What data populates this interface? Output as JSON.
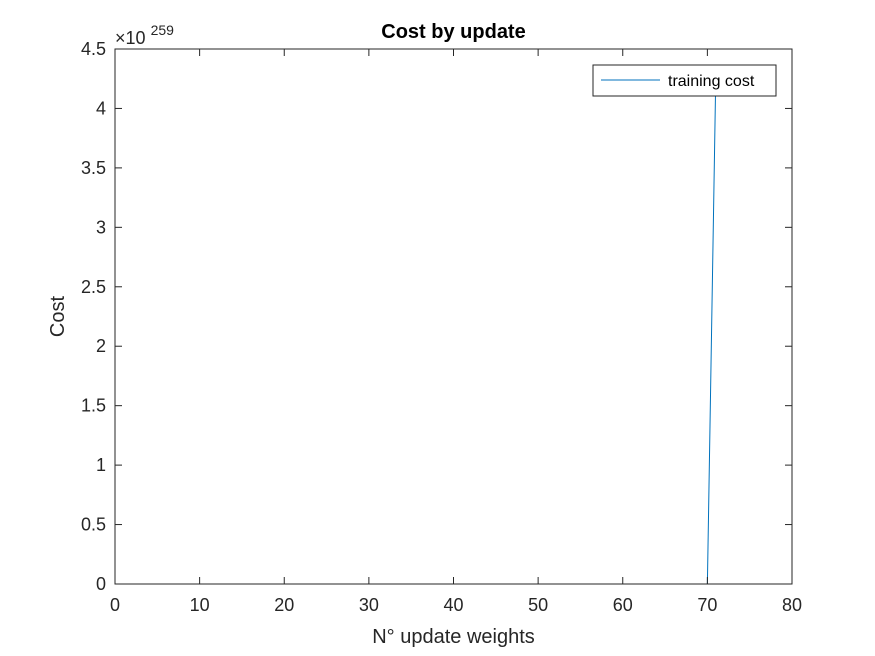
{
  "chart_data": {
    "type": "line",
    "title": "Cost by update",
    "xlabel": "N° update weights",
    "ylabel": "Cost",
    "xlim": [
      0,
      80
    ],
    "ylim": [
      0,
      4.5
    ],
    "y_multiplier": {
      "base": "×10",
      "exponent": "259"
    },
    "x_ticks": [
      0,
      10,
      20,
      30,
      40,
      50,
      60,
      70,
      80
    ],
    "x_tick_labels": [
      "0",
      "10",
      "20",
      "30",
      "40",
      "50",
      "60",
      "70",
      "80"
    ],
    "y_ticks": [
      0,
      0.5,
      1,
      1.5,
      2,
      2.5,
      3,
      3.5,
      4,
      4.5
    ],
    "y_tick_labels": [
      "0",
      "0.5",
      "1",
      "1.5",
      "2",
      "2.5",
      "3",
      "3.5",
      "4",
      "4.5"
    ],
    "grid": false,
    "legend_position": "top-right",
    "series": [
      {
        "name": "training cost",
        "color": "#0072BD",
        "x": [
          1,
          70,
          71
        ],
        "y": [
          0,
          0,
          4.3
        ]
      }
    ]
  }
}
